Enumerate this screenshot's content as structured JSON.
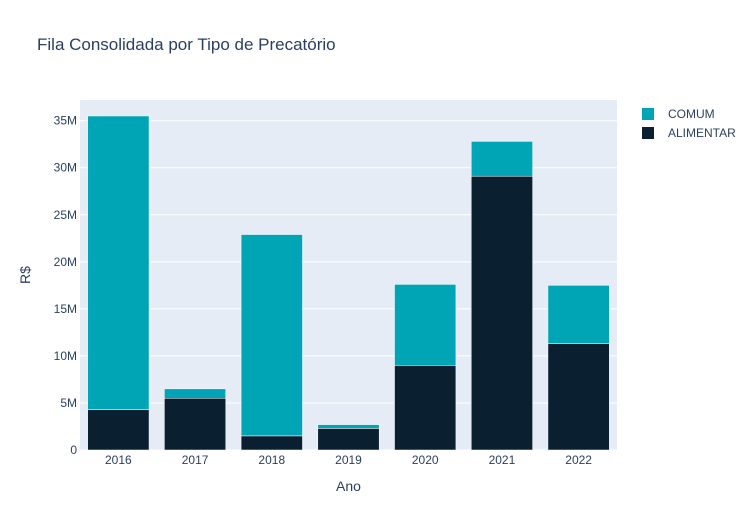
{
  "chart_data": {
    "type": "bar",
    "stacked": true,
    "title": "Fila Consolidada por Tipo de Precatório",
    "xlabel": "Ano",
    "ylabel": "R$",
    "categories": [
      "2016",
      "2017",
      "2018",
      "2019",
      "2020",
      "2021",
      "2022"
    ],
    "series": [
      {
        "name": "ALIMENTAR",
        "color": "#0a1f30",
        "values": [
          4.3,
          5.5,
          1.5,
          2.3,
          9.0,
          29.1,
          11.3
        ]
      },
      {
        "name": "COMUM",
        "color": "#00a5b5",
        "values": [
          31.2,
          1.0,
          21.4,
          0.4,
          8.6,
          3.7,
          6.2
        ]
      }
    ],
    "ylim": [
      0,
      37.2
    ],
    "yunit": "millions",
    "yticks": [
      0,
      5,
      10,
      15,
      20,
      25,
      30,
      35
    ],
    "ytick_labels": [
      "0",
      "5M",
      "10M",
      "15M",
      "20M",
      "25M",
      "30M",
      "35M"
    ],
    "legend_order": [
      "COMUM",
      "ALIMENTAR"
    ],
    "legend_position": "top-right",
    "grid": true,
    "plot_background": "#e5ecf6"
  }
}
